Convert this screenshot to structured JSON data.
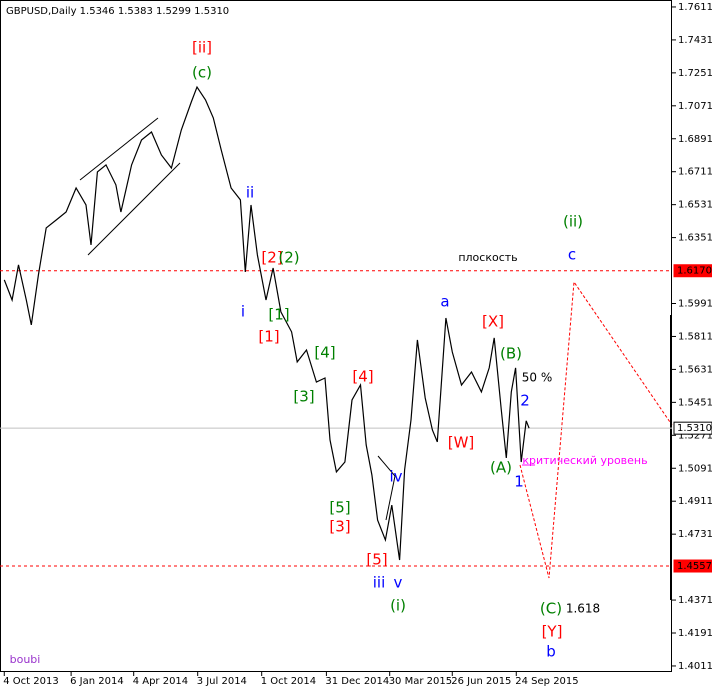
{
  "chart_data": {
    "type": "line",
    "title": "GBPUSD,Daily  1.5346 1.5383 1.5299 1.5310",
    "color": "#000000",
    "grid": false,
    "x": [
      "2013-10-04",
      "2013-10-15",
      "2013-10-24",
      "2013-11-04",
      "2013-11-11",
      "2013-11-21",
      "2013-12-02",
      "2013-12-16",
      "2013-12-30",
      "2014-01-13",
      "2014-01-27",
      "2014-02-03",
      "2014-02-12",
      "2014-02-24",
      "2014-03-10",
      "2014-03-17",
      "2014-04-01",
      "2014-04-15",
      "2014-04-29",
      "2014-05-13",
      "2014-05-27",
      "2014-06-10",
      "2014-06-24",
      "2014-07-02",
      "2014-07-14",
      "2014-07-25",
      "2014-08-05",
      "2014-08-19",
      "2014-09-01",
      "2014-09-08",
      "2014-09-16",
      "2014-09-25",
      "2014-10-07",
      "2014-10-17",
      "2014-10-28",
      "2014-11-12",
      "2014-11-20",
      "2014-12-03",
      "2014-12-17",
      "2014-12-29",
      "2015-01-05",
      "2015-01-14",
      "2015-01-26",
      "2015-02-05",
      "2015-02-17",
      "2015-02-25",
      "2015-03-05",
      "2015-03-13",
      "2015-03-24",
      "2015-04-02",
      "2015-04-13",
      "2015-04-20",
      "2015-04-29",
      "2015-05-08",
      "2015-05-19",
      "2015-05-29",
      "2015-06-05",
      "2015-06-17",
      "2015-06-26",
      "2015-07-09",
      "2015-07-23",
      "2015-08-06",
      "2015-08-17",
      "2015-08-24",
      "2015-09-03",
      "2015-09-10",
      "2015-09-17",
      "2015-09-23",
      "2015-10-01",
      "2015-10-08",
      "2015-10-12"
    ],
    "values": [
      1.612,
      1.601,
      1.6202,
      1.601,
      1.5874,
      1.6147,
      1.6404,
      1.6447,
      1.6491,
      1.6622,
      1.6529,
      1.6311,
      1.671,
      1.6748,
      1.6639,
      1.6491,
      1.6748,
      1.6884,
      1.6928,
      1.6802,
      1.6731,
      1.6939,
      1.7092,
      1.7174,
      1.7103,
      1.7005,
      1.683,
      1.6622,
      1.6557,
      1.6163,
      1.6529,
      1.6256,
      1.601,
      1.6185,
      1.5945,
      1.5836,
      1.5672,
      1.5737,
      1.5562,
      1.5584,
      1.5246,
      1.5071,
      1.5125,
      1.5464,
      1.5546,
      1.5218,
      1.5054,
      1.4808,
      1.4699,
      1.489,
      1.459,
      1.5082,
      1.5355,
      1.5792,
      1.5475,
      1.53,
      1.5235,
      1.5912,
      1.5726,
      1.5546,
      1.5617,
      1.5508,
      1.5639,
      1.5803,
      1.5409,
      1.5147,
      1.5508,
      1.5639,
      1.5125,
      1.535,
      1.531
    ],
    "xlim": [
      "2013-09-28",
      "2016-04-30"
    ],
    "xticks": [
      {
        "value": "2013-10-04",
        "label": "4 Oct 2013"
      },
      {
        "value": "2014-01-06",
        "label": "6 Jan 2014"
      },
      {
        "value": "2014-04-04",
        "label": "4 Apr 2014"
      },
      {
        "value": "2014-07-03",
        "label": "3 Jul 2014"
      },
      {
        "value": "2014-10-01",
        "label": "1 Oct 2014"
      },
      {
        "value": "2014-12-31",
        "label": "31 Dec 2014"
      },
      {
        "value": "2015-03-30",
        "label": "30 Mar 2015"
      },
      {
        "value": "2015-06-26",
        "label": "26 Jun 2015"
      },
      {
        "value": "2015-09-24",
        "label": "24 Sep 2015"
      }
    ],
    "ylim": [
      1.3978,
      1.7649
    ],
    "yticks": [
      1.7611,
      1.7431,
      1.7251,
      1.7071,
      1.6891,
      1.6711,
      1.6531,
      1.6351,
      1.5991,
      1.5811,
      1.5631,
      1.5451,
      1.5271,
      1.5091,
      1.4911,
      1.4731,
      1.4371,
      1.4191,
      1.4011
    ],
    "levels": [
      {
        "value": 1.617,
        "label": "1.6170",
        "color": "#ff0000",
        "style": "dashed"
      },
      {
        "value": 1.531,
        "label": "1.5310",
        "color": "#c0c0c0",
        "style": "solid"
      },
      {
        "value": 1.4557,
        "label": "1.4557",
        "color": "#ff0000",
        "style": "dashed"
      }
    ],
    "annotations": [
      {
        "text": "[ii]",
        "color": "#ff0000"
      },
      {
        "text": "(c)",
        "color": "#008000"
      },
      {
        "text": "ii",
        "color": "#0000ff"
      },
      {
        "text": "i",
        "color": "#0000ff"
      },
      {
        "text": "[2]",
        "color": "#ff0000"
      },
      {
        "text": "(2)",
        "color": "#008000"
      },
      {
        "text": "[1]",
        "color": "#ff0000"
      },
      {
        "text": "[1]",
        "color": "#008000"
      },
      {
        "text": "[4]",
        "color": "#008000"
      },
      {
        "text": "[3]",
        "color": "#008000"
      },
      {
        "text": "[4]",
        "color": "#ff0000"
      },
      {
        "text": "[5]",
        "color": "#008000"
      },
      {
        "text": "[3]",
        "color": "#ff0000"
      },
      {
        "text": "[5]",
        "color": "#ff0000"
      },
      {
        "text": "iii",
        "color": "#0000ff"
      },
      {
        "text": "v",
        "color": "#0000ff"
      },
      {
        "text": "iv",
        "color": "#0000ff"
      },
      {
        "text": "(i)",
        "color": "#008000"
      },
      {
        "text": "a",
        "color": "#0000ff"
      },
      {
        "text": "[X]",
        "color": "#ff0000"
      },
      {
        "text": "[W]",
        "color": "#ff0000"
      },
      {
        "text": "(B)",
        "color": "#008000"
      },
      {
        "text": "50 %",
        "color": "#000000"
      },
      {
        "text": "2",
        "color": "#0000ff"
      },
      {
        "text": "(A)",
        "color": "#008000"
      },
      {
        "text": "1",
        "color": "#0000ff"
      },
      {
        "text": "критический уровень",
        "color": "#ff00ff"
      },
      {
        "text": "плоскость",
        "color": "#000000"
      },
      {
        "text": "(ii)",
        "color": "#008000"
      },
      {
        "text": "c",
        "color": "#0000ff"
      },
      {
        "text": "(C)",
        "color": "#008000"
      },
      {
        "text": "1.618",
        "color": "#000000"
      },
      {
        "text": "[Y]",
        "color": "#ff0000"
      },
      {
        "text": "b",
        "color": "#0000ff"
      },
      {
        "text": "boubi",
        "color": "#9933cc"
      }
    ]
  }
}
